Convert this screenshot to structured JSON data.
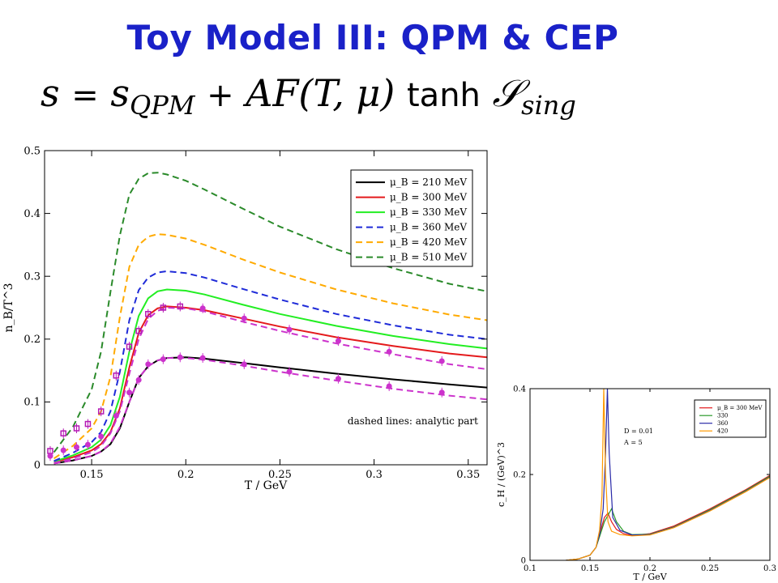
{
  "slide": {
    "title": "Toy Model III: QPM & CEP",
    "formula": {
      "lhs": "s",
      "eq": "=",
      "s": "s",
      "sub_qpm": "QPM",
      "plus": "+",
      "af": "AF",
      "args": "(T, μ)",
      "tanh": "tanh",
      "S": "𝒮",
      "sub_sing": "sing"
    }
  },
  "chart_data": [
    {
      "type": "line",
      "xlabel": "T / GeV",
      "ylabel": "n_B/T^3",
      "xlim": [
        0.125,
        0.36
      ],
      "ylim": [
        0,
        0.5
      ],
      "xticks": [
        0.15,
        0.2,
        0.25,
        0.3,
        0.35
      ],
      "xtick_labels": [
        "0.15",
        "0.2",
        "0.25",
        "0.3",
        "0.35"
      ],
      "yticks": [
        0,
        0.1,
        0.2,
        0.3,
        0.4,
        0.5
      ],
      "ytick_labels": [
        "0",
        "0.1",
        "0.2",
        "0.3",
        "0.4",
        "0.5"
      ],
      "legend_position": "top-right",
      "annotation": "dashed lines: analytic part",
      "series": [
        {
          "name": "μ_B = 210 MeV",
          "color": "#000000",
          "style": "solid",
          "x": [
            0.13,
            0.14,
            0.15,
            0.155,
            0.16,
            0.165,
            0.17,
            0.175,
            0.18,
            0.185,
            0.19,
            0.2,
            0.21,
            0.23,
            0.25,
            0.28,
            0.31,
            0.34,
            0.36
          ],
          "y": [
            0.002,
            0.007,
            0.014,
            0.021,
            0.033,
            0.058,
            0.1,
            0.138,
            0.157,
            0.166,
            0.17,
            0.171,
            0.169,
            0.162,
            0.155,
            0.145,
            0.136,
            0.128,
            0.123
          ]
        },
        {
          "name": "μ_B = 300 MeV",
          "color": "#e41a1c",
          "style": "solid",
          "x": [
            0.13,
            0.14,
            0.15,
            0.155,
            0.16,
            0.165,
            0.17,
            0.175,
            0.18,
            0.185,
            0.19,
            0.2,
            0.21,
            0.23,
            0.25,
            0.28,
            0.31,
            0.34,
            0.36
          ],
          "y": [
            0.004,
            0.012,
            0.023,
            0.033,
            0.052,
            0.09,
            0.155,
            0.21,
            0.238,
            0.249,
            0.252,
            0.25,
            0.246,
            0.233,
            0.22,
            0.203,
            0.189,
            0.177,
            0.171
          ]
        },
        {
          "name": "μ_B = 330 MeV",
          "color": "#22ee22",
          "style": "solid",
          "x": [
            0.13,
            0.14,
            0.15,
            0.155,
            0.16,
            0.165,
            0.17,
            0.175,
            0.18,
            0.185,
            0.19,
            0.2,
            0.21,
            0.23,
            0.25,
            0.28,
            0.31,
            0.34,
            0.36
          ],
          "y": [
            0.005,
            0.015,
            0.028,
            0.04,
            0.063,
            0.108,
            0.18,
            0.237,
            0.265,
            0.276,
            0.279,
            0.277,
            0.271,
            0.255,
            0.24,
            0.221,
            0.205,
            0.192,
            0.185
          ]
        },
        {
          "name": "μ_B = 360 MeV",
          "color": "#1f2bd8",
          "style": "dashed",
          "x": [
            0.13,
            0.14,
            0.15,
            0.155,
            0.16,
            0.165,
            0.17,
            0.175,
            0.18,
            0.185,
            0.19,
            0.2,
            0.21,
            0.23,
            0.25,
            0.28,
            0.31,
            0.34,
            0.36
          ],
          "y": [
            0.006,
            0.019,
            0.036,
            0.052,
            0.085,
            0.148,
            0.23,
            0.278,
            0.298,
            0.306,
            0.308,
            0.305,
            0.298,
            0.28,
            0.263,
            0.24,
            0.222,
            0.207,
            0.2
          ]
        },
        {
          "name": "μ_B = 420 MeV",
          "color": "#ffaa00",
          "style": "dashed",
          "x": [
            0.13,
            0.14,
            0.15,
            0.155,
            0.16,
            0.165,
            0.17,
            0.175,
            0.18,
            0.185,
            0.19,
            0.2,
            0.21,
            0.23,
            0.25,
            0.28,
            0.31,
            0.34,
            0.36
          ],
          "y": [
            0.01,
            0.03,
            0.058,
            0.085,
            0.14,
            0.235,
            0.315,
            0.35,
            0.363,
            0.367,
            0.366,
            0.36,
            0.35,
            0.327,
            0.306,
            0.279,
            0.257,
            0.239,
            0.23
          ]
        },
        {
          "name": "μ_B = 510 MeV",
          "color": "#2a8a2a",
          "style": "dashed",
          "x": [
            0.13,
            0.14,
            0.15,
            0.155,
            0.16,
            0.165,
            0.17,
            0.175,
            0.18,
            0.185,
            0.19,
            0.2,
            0.21,
            0.23,
            0.25,
            0.28,
            0.31,
            0.34,
            0.36
          ],
          "y": [
            0.02,
            0.06,
            0.12,
            0.18,
            0.275,
            0.365,
            0.43,
            0.455,
            0.464,
            0.465,
            0.462,
            0.452,
            0.438,
            0.408,
            0.379,
            0.343,
            0.313,
            0.288,
            0.276
          ]
        },
        {
          "name": "",
          "color": "#cc33cc",
          "style": "dashed",
          "legend": false,
          "x": [
            0.13,
            0.14,
            0.15,
            0.155,
            0.16,
            0.165,
            0.17,
            0.175,
            0.18,
            0.185,
            0.19,
            0.2,
            0.21,
            0.23,
            0.25,
            0.28,
            0.31,
            0.34,
            0.36
          ],
          "y": [
            0.003,
            0.01,
            0.02,
            0.03,
            0.05,
            0.085,
            0.145,
            0.2,
            0.232,
            0.245,
            0.25,
            0.249,
            0.244,
            0.228,
            0.213,
            0.193,
            0.176,
            0.16,
            0.152
          ]
        },
        {
          "name": "",
          "color": "#cc33cc",
          "style": "dashed",
          "legend": false,
          "x": [
            0.13,
            0.14,
            0.15,
            0.155,
            0.16,
            0.165,
            0.17,
            0.175,
            0.18,
            0.185,
            0.19,
            0.2,
            0.21,
            0.23,
            0.25,
            0.28,
            0.31,
            0.34,
            0.36
          ],
          "y": [
            0.002,
            0.007,
            0.014,
            0.021,
            0.034,
            0.06,
            0.1,
            0.138,
            0.157,
            0.166,
            0.17,
            0.17,
            0.167,
            0.158,
            0.148,
            0.134,
            0.121,
            0.11,
            0.104
          ]
        }
      ],
      "data_points": [
        {
          "name": "",
          "color": "#b51ab5",
          "marker": "square",
          "x": [
            0.128,
            0.135,
            0.142,
            0.148,
            0.155,
            0.163,
            0.17,
            0.175,
            0.18,
            0.188,
            0.197
          ],
          "y": [
            0.022,
            0.05,
            0.058,
            0.065,
            0.085,
            0.142,
            0.188,
            0.213,
            0.24,
            0.25,
            0.252
          ]
        },
        {
          "name": "",
          "color": "#cc33cc",
          "marker": "circle",
          "x": [
            0.128,
            0.135,
            0.142,
            0.148,
            0.155,
            0.163,
            0.17,
            0.175,
            0.18,
            0.188,
            0.197,
            0.209,
            0.231,
            0.255,
            0.281,
            0.308,
            0.336
          ],
          "y": [
            0.014,
            0.023,
            0.028,
            0.032,
            0.045,
            0.078,
            0.115,
            0.135,
            0.16,
            0.168,
            0.171,
            0.17,
            0.16,
            0.148,
            0.137,
            0.125,
            0.115
          ]
        },
        {
          "name": "",
          "color": "#cc33cc",
          "marker": "circle",
          "x": [
            0.209,
            0.231,
            0.255,
            0.281,
            0.308,
            0.336
          ],
          "y": [
            0.249,
            0.233,
            0.215,
            0.197,
            0.18,
            0.165
          ]
        }
      ]
    },
    {
      "type": "line",
      "xlabel": "T / GeV",
      "ylabel": "c_H / (GeV)^3",
      "xlim": [
        0.1,
        0.3
      ],
      "ylim": [
        0,
        0.4
      ],
      "xticks": [
        0.1,
        0.15,
        0.2,
        0.25,
        0.3
      ],
      "xtick_labels": [
        "0.1",
        "0.15",
        "0.2",
        "0.25",
        "0.3"
      ],
      "yticks": [
        0,
        0.2,
        0.4
      ],
      "ytick_labels": [
        "0",
        "0.2",
        "0.4"
      ],
      "legend_position": "top-right",
      "annotations": [
        "D = 0.01",
        "A = 5"
      ],
      "series": [
        {
          "name": "μ_B = 300 MeV",
          "color": "#e41a1c",
          "style": "solid",
          "x": [
            0.13,
            0.14,
            0.15,
            0.155,
            0.158,
            0.162,
            0.165,
            0.168,
            0.172,
            0.178,
            0.185,
            0.2,
            0.22,
            0.25,
            0.28,
            0.3
          ],
          "y": [
            0.0,
            0.003,
            0.012,
            0.03,
            0.06,
            0.1,
            0.11,
            0.09,
            0.072,
            0.062,
            0.058,
            0.062,
            0.08,
            0.12,
            0.165,
            0.198
          ]
        },
        {
          "name": "330",
          "color": "#2a9a2a",
          "style": "solid",
          "x": [
            0.13,
            0.14,
            0.15,
            0.155,
            0.158,
            0.162,
            0.165,
            0.168,
            0.172,
            0.178,
            0.185,
            0.2,
            0.22,
            0.25,
            0.28,
            0.3
          ],
          "y": [
            0.0,
            0.003,
            0.012,
            0.03,
            0.055,
            0.09,
            0.105,
            0.12,
            0.09,
            0.068,
            0.06,
            0.061,
            0.078,
            0.118,
            0.163,
            0.196
          ]
        },
        {
          "name": "360",
          "color": "#2a2aa8",
          "style": "solid",
          "x": [
            0.13,
            0.14,
            0.15,
            0.155,
            0.158,
            0.161,
            0.163,
            0.1645,
            0.166,
            0.169,
            0.175,
            0.185,
            0.2,
            0.22,
            0.25,
            0.28,
            0.3
          ],
          "y": [
            0.0,
            0.003,
            0.012,
            0.03,
            0.06,
            0.12,
            0.25,
            0.4,
            0.25,
            0.1,
            0.07,
            0.059,
            0.06,
            0.077,
            0.116,
            0.161,
            0.194
          ]
        },
        {
          "name": "420",
          "color": "#ff9900",
          "style": "solid",
          "x": [
            0.13,
            0.14,
            0.15,
            0.155,
            0.158,
            0.16,
            0.1615,
            0.163,
            0.165,
            0.168,
            0.175,
            0.185,
            0.2,
            0.22,
            0.25,
            0.28,
            0.3
          ],
          "y": [
            0.0,
            0.003,
            0.012,
            0.03,
            0.07,
            0.15,
            0.4,
            0.2,
            0.09,
            0.068,
            0.06,
            0.057,
            0.059,
            0.076,
            0.115,
            0.16,
            0.193
          ]
        }
      ]
    }
  ]
}
